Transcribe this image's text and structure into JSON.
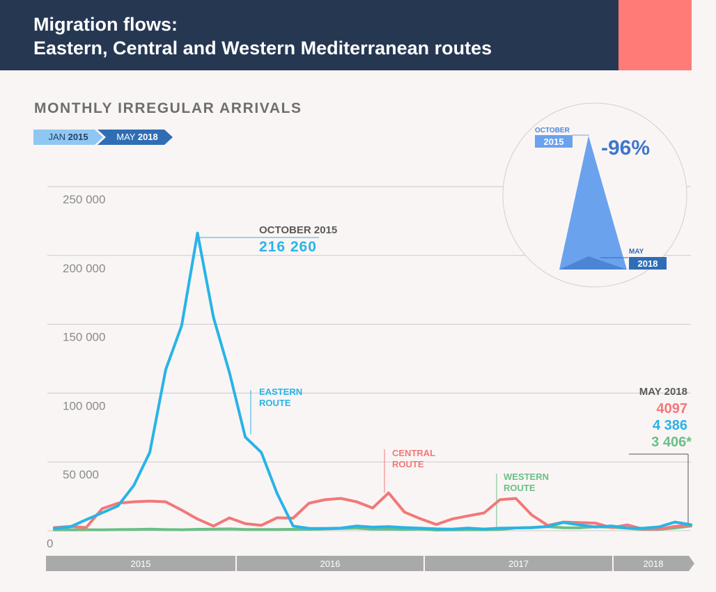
{
  "header": {
    "title_line1": "Migration flows:",
    "title_line2": "Eastern, Central and Western Mediterranean routes"
  },
  "subtitle": "MONTHLY IRREGULAR ARRIVALS",
  "range": {
    "start_month": "JAN",
    "start_year": "2015",
    "end_month": "MAY",
    "end_year": "2018"
  },
  "colors": {
    "header": "#263752",
    "accent": "#ff7b78",
    "eastern": "#28b4e6",
    "central": "#f27878",
    "western": "#6abf86"
  },
  "callouts": {
    "peak_label": "OCTOBER 2015",
    "peak_value": "216 260",
    "eastern_l1": "EASTERN",
    "eastern_l2": "ROUTE",
    "central_l1": "CENTRAL",
    "central_l2": "ROUTE",
    "western_l1": "WESTERN",
    "western_l2": "ROUTE",
    "may_label": "MAY 2018",
    "may_central": "4097",
    "may_eastern": "4 386",
    "may_western": "3 406*"
  },
  "inset": {
    "from_month": "OCTOBER",
    "from_year": "2015",
    "to_month": "MAY",
    "to_year": "2018",
    "change": "-96%"
  },
  "chart_data": {
    "type": "line",
    "x": [
      "2015-01",
      "2015-02",
      "2015-03",
      "2015-04",
      "2015-05",
      "2015-06",
      "2015-07",
      "2015-08",
      "2015-09",
      "2015-10",
      "2015-11",
      "2015-12",
      "2016-01",
      "2016-02",
      "2016-03",
      "2016-04",
      "2016-05",
      "2016-06",
      "2016-07",
      "2016-08",
      "2016-09",
      "2016-10",
      "2016-11",
      "2016-12",
      "2017-01",
      "2017-02",
      "2017-03",
      "2017-04",
      "2017-05",
      "2017-06",
      "2017-07",
      "2017-08",
      "2017-09",
      "2017-10",
      "2017-11",
      "2017-12",
      "2018-01",
      "2018-02",
      "2018-03",
      "2018-04",
      "2018-05"
    ],
    "ylim": [
      0,
      250000
    ],
    "yticks": [
      0,
      50000,
      100000,
      150000,
      200000,
      250000
    ],
    "ytick_labels": [
      "0",
      "50 000",
      "100 000",
      "150 000",
      "200 000",
      "250 000"
    ],
    "year_labels": [
      "2015",
      "2016",
      "2017",
      "2018"
    ],
    "grid": true,
    "series": [
      {
        "name": "EASTERN ROUTE",
        "color": "#28b4e6",
        "values": [
          1700,
          2800,
          8000,
          13000,
          18000,
          33000,
          57000,
          117000,
          149000,
          216260,
          155000,
          115000,
          68000,
          57000,
          27000,
          3400,
          1700,
          1600,
          1900,
          3400,
          2600,
          3000,
          2300,
          1800,
          1300,
          1100,
          1900,
          1200,
          1800,
          2000,
          2200,
          3100,
          6000,
          4200,
          2700,
          3500,
          1900,
          1800,
          2800,
          6300,
          4386
        ]
      },
      {
        "name": "CENTRAL ROUTE",
        "color": "#f27878",
        "values": [
          2300,
          3100,
          2300,
          16000,
          20000,
          21000,
          21500,
          21000,
          15000,
          8500,
          3400,
          9300,
          5100,
          3900,
          9400,
          9100,
          20000,
          22500,
          23500,
          21000,
          16500,
          27500,
          13500,
          8700,
          4500,
          8500,
          10800,
          12900,
          22500,
          23500,
          11400,
          3900,
          6300,
          5900,
          5500,
          2300,
          4200,
          1100,
          1100,
          3200,
          4097
        ]
      },
      {
        "name": "WESTERN ROUTE",
        "color": "#6abf86",
        "values": [
          600,
          600,
          700,
          600,
          800,
          900,
          1100,
          800,
          700,
          1000,
          1100,
          1300,
          900,
          900,
          900,
          1000,
          1000,
          1300,
          1600,
          1900,
          1100,
          1100,
          900,
          1200,
          500,
          600,
          700,
          700,
          900,
          2000,
          2400,
          3000,
          2200,
          2100,
          3000,
          2500,
          1800,
          900,
          1000,
          2000,
          3406
        ]
      }
    ]
  }
}
